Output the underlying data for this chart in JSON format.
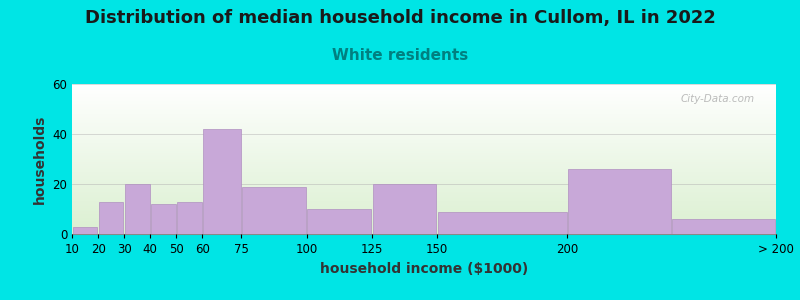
{
  "title": "Distribution of median household income in Cullom, IL in 2022",
  "subtitle": "White residents",
  "xlabel": "household income ($1000)",
  "ylabel": "households",
  "bar_labels": [
    "10",
    "20",
    "30",
    "40",
    "50",
    "60",
    "75",
    "100",
    "125",
    "150",
    "200",
    "> 200"
  ],
  "bar_heights": [
    3,
    13,
    20,
    12,
    13,
    42,
    19,
    10,
    20,
    9,
    26,
    6
  ],
  "bin_lefts": [
    10,
    20,
    30,
    40,
    50,
    60,
    75,
    100,
    125,
    150,
    200,
    240
  ],
  "bin_rights": [
    20,
    30,
    40,
    50,
    60,
    75,
    100,
    125,
    150,
    200,
    240,
    280
  ],
  "tick_positions": [
    10,
    20,
    30,
    40,
    50,
    60,
    75,
    100,
    125,
    150,
    200,
    280
  ],
  "bar_color": "#c8a8d8",
  "bar_edge_color": "#b090c0",
  "ylim": [
    0,
    60
  ],
  "yticks": [
    0,
    20,
    40,
    60
  ],
  "xlim": [
    10,
    280
  ],
  "background_color": "#00e5e5",
  "title_fontsize": 13,
  "subtitle_fontsize": 11,
  "subtitle_color": "#008080",
  "axis_label_fontsize": 10,
  "tick_fontsize": 8.5,
  "watermark": "City-Data.com"
}
